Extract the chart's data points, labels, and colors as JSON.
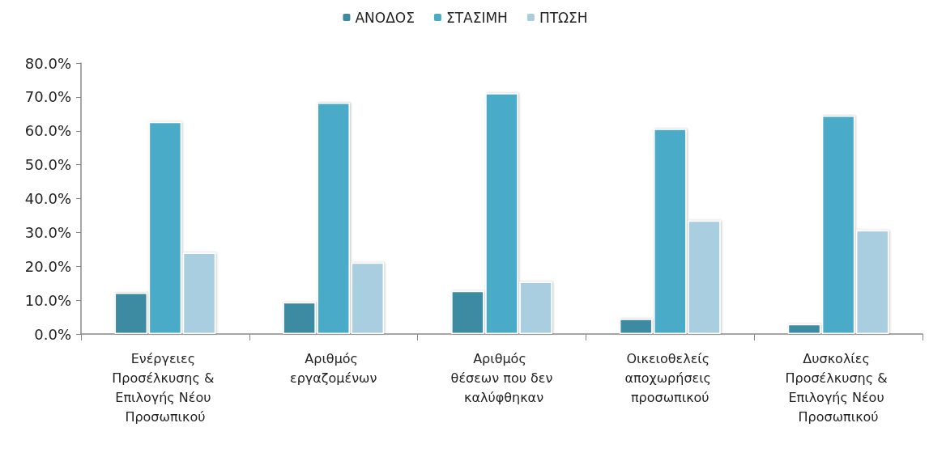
{
  "chart_data": {
    "type": "bar",
    "categories": [
      "Ενέργειες Προσέλκυσης & Επιλογής Νέου Προσωπικού",
      "Αριθμός εργαζομένων",
      "Αριθμός θέσεων που δεν καλύφθηκαν",
      "Οικειοθελείς αποχωρήσεις προσωπικού",
      "Δυσκολίες Προσέλκυσης & Επιλογής Νέου Προσωπικού"
    ],
    "series": [
      {
        "name": "ΑΝΟΔΟΣ",
        "color": "#3d8aa3",
        "values": [
          12.2,
          9.4,
          12.7,
          4.5,
          2.9
        ]
      },
      {
        "name": "ΣΤΑΣΙΜΗ",
        "color": "#4aabc7",
        "values": [
          62.6,
          68.3,
          71.1,
          60.6,
          64.5
        ]
      },
      {
        "name": "ΠΤΩΣΗ",
        "color": "#a9cedf",
        "values": [
          24.0,
          21.1,
          15.4,
          33.5,
          30.6
        ]
      }
    ],
    "ylim": [
      0,
      80
    ],
    "yticks": [
      {
        "value": 0,
        "label": "0.0%"
      },
      {
        "value": 10,
        "label": "10.0%"
      },
      {
        "value": 20,
        "label": "20.0%"
      },
      {
        "value": 30,
        "label": "30.0%"
      },
      {
        "value": 40,
        "label": "40.0%"
      },
      {
        "value": 50,
        "label": "50.0%"
      },
      {
        "value": 60,
        "label": "60.0%"
      },
      {
        "value": 70,
        "label": "70.0%"
      },
      {
        "value": 80,
        "label": "80.0%"
      }
    ],
    "grid": false,
    "legend": "top"
  }
}
